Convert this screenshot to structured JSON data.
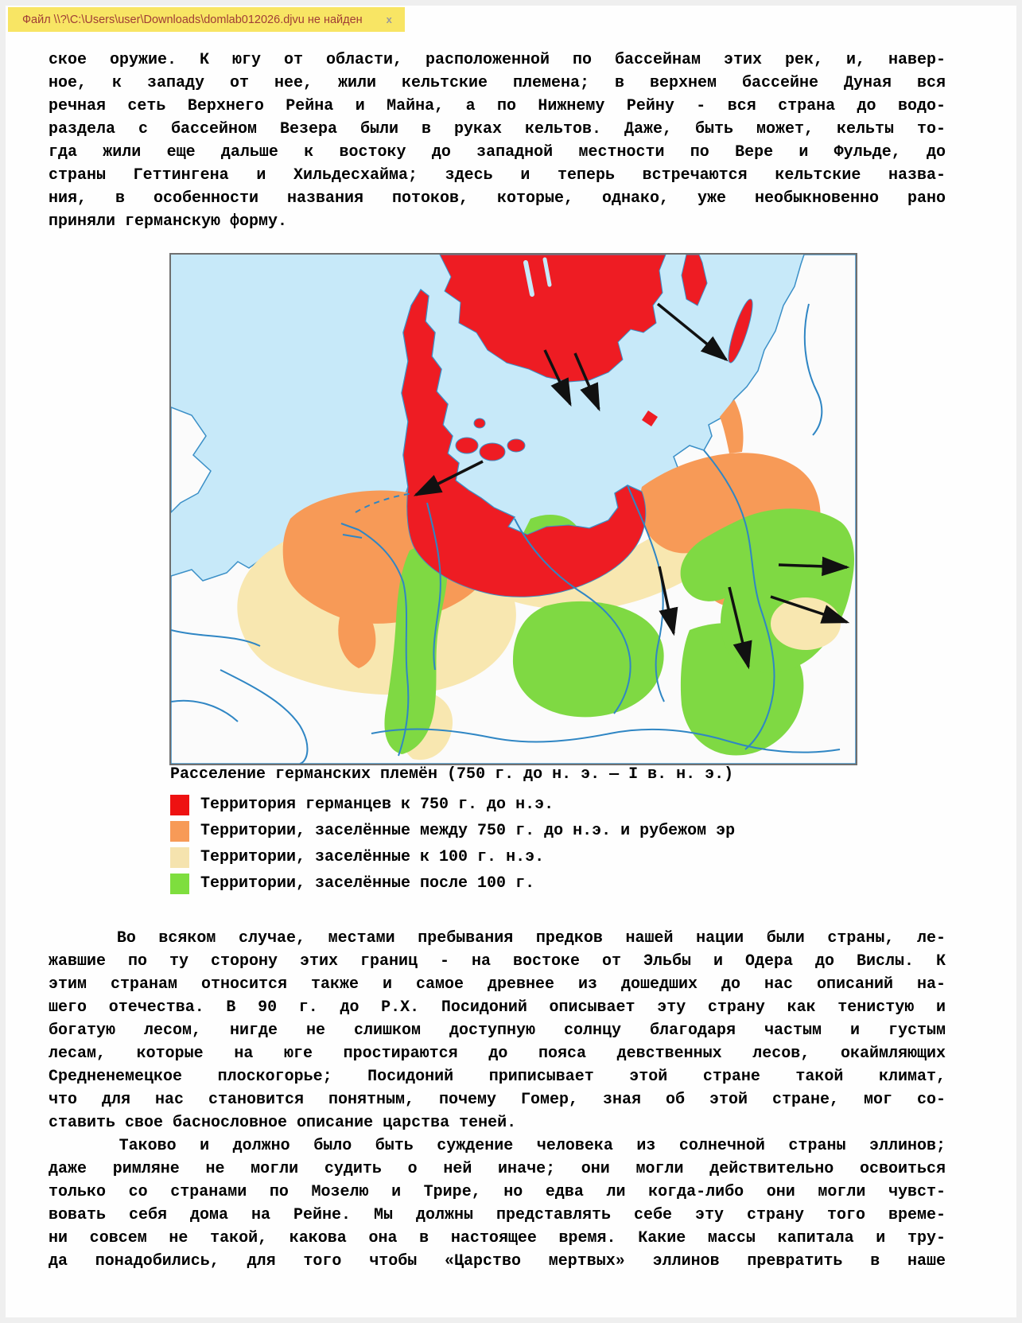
{
  "banner": {
    "message": "Файл \\\\?\\C:\\Users\\user\\Downloads\\domlab012026.djvu не найден",
    "close_label": "x",
    "bg_color": "#f8e564",
    "text_color": "#a03d36"
  },
  "paragraphs": {
    "p1_lines": [
      "ское оружие. К югу от области, расположенной по бассейнам этих рек, и, навер-",
      "ное, к западу от нее, жили кельтские племена; в верхнем бассейне Дуная вся",
      "речная сеть Верхнего Рейна и Майна, а по Нижнему Рейну - вся страна до водо-",
      "раздела с бассейном Везера были в руках кельтов. Даже, быть может, кельты то-",
      "гда жили еще дальше к востоку до западной местности по Вере и Фульде, до",
      "страны Геттингена и Хильдесхайма; здесь и теперь встречаются кельтские назва-",
      "ния, в особенности названия потоков, которые, однако, уже необыкновенно рано",
      "приняли германскую форму."
    ],
    "p2_lines": [
      "   Во всяком случае, местами пребывания предков нашей нации были страны, ле-",
      "жавшие по ту сторону этих границ - на востоке от Эльбы и Одера до Вислы. К",
      "этим странам относится также и самое древнее из дошедших до нас описаний на-",
      "шего отечества. В 90 г. до Р.Х. Посидоний описывает эту страну как тенистую и",
      "богатую лесом, нигде не слишком доступную солнцу благодаря частым и густым",
      "лесам, которые на юге простираются до пояса девственных лесов, окаймляющих",
      "Средненемецкое плоскогорье; Посидоний приписывает этой стране такой климат,",
      "что для нас становится понятным, почему Гомер, зная об этой стране, мог со-",
      "ставить свое баснословное описание царства теней."
    ],
    "p3_lines": [
      "   Таково и должно было быть суждение человека из солнечной страны эллинов;",
      "даже римляне не могли судить о ней иначе; они могли действительно освоиться",
      "только со странами по Мозелю и Трире, но едва ли когда-либо они могли чувст-",
      "вовать себя дома на Рейне. Мы должны представлять себе эту страну того време-",
      "ни совсем не такой, какова она в настоящее время. Какие массы капитала и тру-",
      "да понадобились, для того чтобы «Царство мертвых» эллинов превратить в наше"
    ]
  },
  "map": {
    "caption_title": "Расселение германских племён (750 г. до н. э. — I в. н. э.)",
    "legend": [
      {
        "color": "#ee1111",
        "label": "Территория германцев к 750 г. до н.э."
      },
      {
        "color": "#f79a57",
        "label": "Территории, заселённые между 750 г. до н.э. и рубежом эр"
      },
      {
        "color": "#f5e3ae",
        "label": "Территории, заселённые к 100 г. н.э."
      },
      {
        "color": "#7ede3e",
        "label": "Территории, заселённые после 100 г."
      }
    ],
    "colors": {
      "sea": "#c7e9f9",
      "land": "#fbfbfb",
      "red": "#ee1c23",
      "orange": "#f79a57",
      "cream": "#f8e7b0",
      "green": "#7fd943",
      "river": "#2f86c4",
      "arrow": "#111111"
    }
  }
}
